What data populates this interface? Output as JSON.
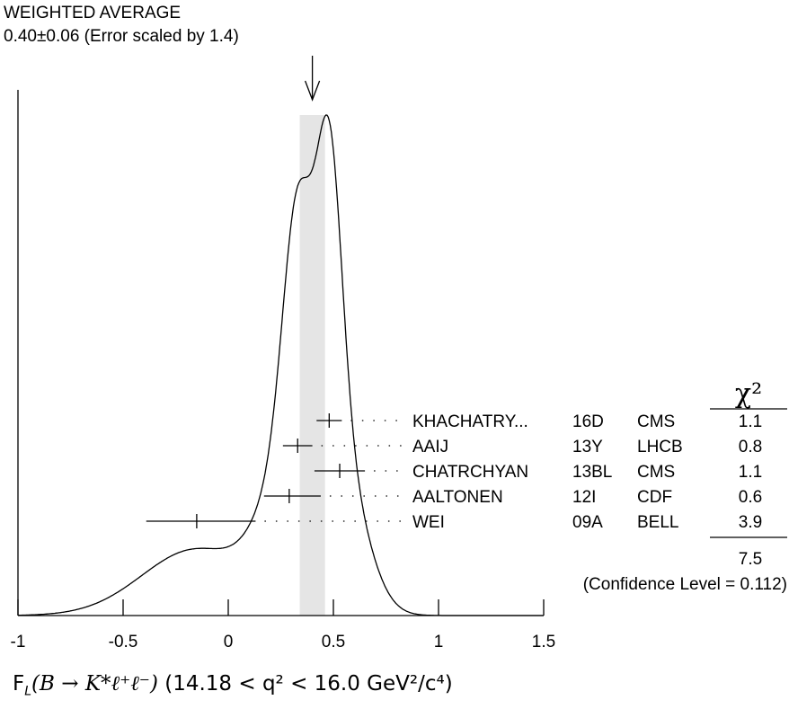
{
  "header": {
    "title": "WEIGHTED AVERAGE",
    "value": "0.40±0.06 (Error scaled by 1.4)"
  },
  "x_label": {
    "lhs": "F",
    "lhs_sub": "L",
    "process": "(B → K*ℓ⁺ℓ⁻)",
    "range": "(14.18 < q² < 16.0 GeV²/c⁴)"
  },
  "chi2_header": "χ²",
  "chi2_total": "7.5",
  "confidence_level": "(Confidence Level = 0.112)",
  "chart_data": {
    "type": "ideogram",
    "title": "WEIGHTED AVERAGE",
    "xlabel": "F_L(B → K*ℓ+ℓ−) (14.18 < q² < 16.0 GeV²/c⁴)",
    "xlim": [
      -1,
      1.5
    ],
    "x_ticks": [
      "-1",
      "-0.5",
      "0",
      "0.5",
      "1",
      "1.5"
    ],
    "x_tick_values": [
      -1,
      -0.5,
      0,
      0.5,
      1,
      1.5
    ],
    "average": {
      "value": 0.4,
      "error": 0.06,
      "scale_factor": 1.4,
      "band": [
        0.34,
        0.46
      ]
    },
    "measurements": [
      {
        "author": "KHACHATRY...",
        "year": "16D",
        "experiment": "CMS",
        "value": 0.48,
        "err_low": 0.06,
        "err_high": 0.06,
        "chi2": "1.1"
      },
      {
        "author": "AAIJ",
        "year": "13Y",
        "experiment": "LHCB",
        "value": 0.33,
        "err_low": 0.07,
        "err_high": 0.07,
        "chi2": "0.8"
      },
      {
        "author": "CHATRCHYAN",
        "year": "13BL",
        "experiment": "CMS",
        "value": 0.53,
        "err_low": 0.12,
        "err_high": 0.12,
        "chi2": "1.1"
      },
      {
        "author": "AALTONEN",
        "year": "12I",
        "experiment": "CDF",
        "value": 0.29,
        "err_low": 0.12,
        "err_high": 0.15,
        "chi2": "0.6"
      },
      {
        "author": "WEI",
        "year": "09A",
        "experiment": "BELL",
        "value": -0.15,
        "err_low": 0.24,
        "err_high": 0.28,
        "chi2": "3.9"
      }
    ],
    "chi2_total": "7.5",
    "confidence_level": 0.112
  }
}
